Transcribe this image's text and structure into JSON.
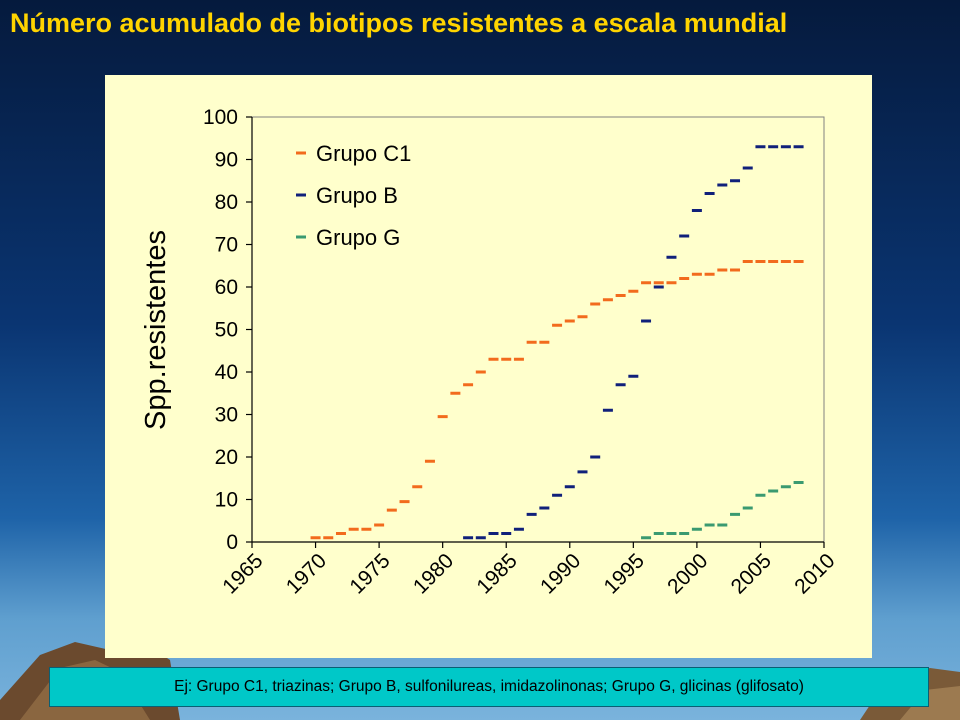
{
  "title": "Número acumulado de biotipos resistentes a escala mundial",
  "caption": "Ej: Grupo C1, triazinas; Grupo B, sulfonilureas, imidazolinonas; Grupo G, glicinas (glifosato)",
  "chart_data": {
    "type": "scatter",
    "marker": "dash",
    "ylabel": "Spp.resistentes",
    "xlabel": "",
    "xlim": [
      1965,
      2010
    ],
    "ylim": [
      0,
      100
    ],
    "x_ticks": [
      1965,
      1970,
      1975,
      1980,
      1985,
      1990,
      1995,
      2000,
      2005,
      2010
    ],
    "y_ticks": [
      0,
      10,
      20,
      30,
      40,
      50,
      60,
      70,
      80,
      90,
      100
    ],
    "grid": false,
    "legend_position": "top-left",
    "series": [
      {
        "name": "Grupo C1",
        "color": "#f26b1d",
        "points": [
          [
            1970,
            1
          ],
          [
            1971,
            1
          ],
          [
            1972,
            2
          ],
          [
            1973,
            3
          ],
          [
            1974,
            3
          ],
          [
            1975,
            4
          ],
          [
            1976,
            7.5
          ],
          [
            1977,
            9.5
          ],
          [
            1978,
            13
          ],
          [
            1979,
            19
          ],
          [
            1980,
            29.5
          ],
          [
            1981,
            35
          ],
          [
            1982,
            37
          ],
          [
            1983,
            40
          ],
          [
            1984,
            43
          ],
          [
            1985,
            43
          ],
          [
            1986,
            43
          ],
          [
            1987,
            47
          ],
          [
            1988,
            47
          ],
          [
            1989,
            51
          ],
          [
            1990,
            52
          ],
          [
            1991,
            53
          ],
          [
            1992,
            56
          ],
          [
            1993,
            57
          ],
          [
            1994,
            58
          ],
          [
            1995,
            59
          ],
          [
            1996,
            61
          ],
          [
            1997,
            61
          ],
          [
            1998,
            61
          ],
          [
            1999,
            62
          ],
          [
            2000,
            63
          ],
          [
            2001,
            63
          ],
          [
            2002,
            64
          ],
          [
            2003,
            64
          ],
          [
            2004,
            66
          ],
          [
            2005,
            66
          ],
          [
            2006,
            66
          ],
          [
            2007,
            66
          ],
          [
            2008,
            66
          ]
        ]
      },
      {
        "name": "Grupo B",
        "color": "#10207a",
        "points": [
          [
            1982,
            1
          ],
          [
            1983,
            1
          ],
          [
            1984,
            2
          ],
          [
            1985,
            2
          ],
          [
            1986,
            3
          ],
          [
            1987,
            6.5
          ],
          [
            1988,
            8
          ],
          [
            1989,
            11
          ],
          [
            1990,
            13
          ],
          [
            1991,
            16.5
          ],
          [
            1992,
            20
          ],
          [
            1993,
            31
          ],
          [
            1994,
            37
          ],
          [
            1995,
            39
          ],
          [
            1996,
            52
          ],
          [
            1997,
            60
          ],
          [
            1998,
            67
          ],
          [
            1999,
            72
          ],
          [
            2000,
            78
          ],
          [
            2001,
            82
          ],
          [
            2002,
            84
          ],
          [
            2003,
            85
          ],
          [
            2004,
            88
          ],
          [
            2005,
            93
          ],
          [
            2006,
            93
          ],
          [
            2007,
            93
          ],
          [
            2008,
            93
          ]
        ]
      },
      {
        "name": "Grupo G",
        "color": "#3a9a70",
        "points": [
          [
            1996,
            1
          ],
          [
            1997,
            2
          ],
          [
            1998,
            2
          ],
          [
            1999,
            2
          ],
          [
            2000,
            3
          ],
          [
            2001,
            4
          ],
          [
            2002,
            4
          ],
          [
            2003,
            6.5
          ],
          [
            2004,
            8
          ],
          [
            2005,
            11
          ],
          [
            2006,
            12
          ],
          [
            2007,
            13
          ],
          [
            2008,
            14
          ]
        ]
      }
    ]
  }
}
